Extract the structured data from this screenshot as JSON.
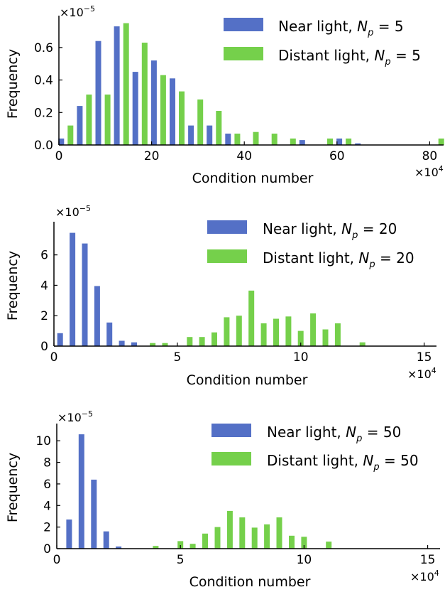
{
  "colors": {
    "near": "#5470c6",
    "distant": "#75d04b",
    "axis": "#000000"
  },
  "common": {
    "xlabel": "Condition number",
    "ylabel": "Frequency",
    "x_multiplier": "×10",
    "x_exp": "4",
    "y_multiplier": "×10",
    "y_exp": "−5"
  },
  "chart_data": [
    {
      "type": "bar",
      "xlim": [
        0,
        83
      ],
      "ylim": [
        0,
        0.77
      ],
      "xticks": [
        0,
        20,
        40,
        60,
        80
      ],
      "yticks": [
        0,
        0.2,
        0.4,
        0.6
      ],
      "ytick_labels": [
        "0.0",
        "0.2",
        "0.4",
        "0.6"
      ],
      "legend_position": "top-right",
      "series": [
        {
          "name": "Near light, ",
          "np": "5",
          "x": [
            0.5,
            4.5,
            8.5,
            12.5,
            16.5,
            20.5,
            24.5,
            28.5,
            32.5,
            36.5,
            52.5,
            60.5,
            64.5
          ],
          "values": [
            0.04,
            0.24,
            0.64,
            0.73,
            0.45,
            0.52,
            0.41,
            0.12,
            0.12,
            0.07,
            0.03,
            0.04,
            0.01
          ]
        },
        {
          "name": "Distant light, ",
          "np": "5",
          "x": [
            2.5,
            6.5,
            10.5,
            14.5,
            18.5,
            22.5,
            26.5,
            30.5,
            34.5,
            38.5,
            42.5,
            46.5,
            50.5,
            58.5,
            62.5,
            82.5
          ],
          "values": [
            0.12,
            0.31,
            0.31,
            0.75,
            0.63,
            0.43,
            0.33,
            0.28,
            0.21,
            0.07,
            0.08,
            0.07,
            0.04,
            0.04,
            0.04,
            0.04
          ]
        }
      ]
    },
    {
      "type": "bar",
      "xlim": [
        0,
        15.5
      ],
      "ylim": [
        0,
        7.9
      ],
      "xticks": [
        0,
        5,
        10,
        15
      ],
      "yticks": [
        0,
        2,
        4,
        6
      ],
      "ytick_labels": [
        "0",
        "2",
        "4",
        "6"
      ],
      "legend_position": "top-right",
      "series": [
        {
          "name": "Near light, ",
          "np": "20",
          "x": [
            0.25,
            0.75,
            1.25,
            1.75,
            2.25,
            2.75,
            3.25
          ],
          "values": [
            0.85,
            7.45,
            6.75,
            3.95,
            1.55,
            0.35,
            0.25
          ]
        },
        {
          "name": "Distant light, ",
          "np": "20",
          "x": [
            0.5,
            1.0,
            1.5,
            2.0,
            2.5,
            3.0,
            3.5,
            4.0,
            4.5,
            5.0,
            5.5,
            6.0,
            6.5,
            7.0,
            7.5,
            8.0,
            8.5,
            9.0,
            9.5,
            10.0,
            10.5,
            11.0,
            11.5,
            12.0,
            12.5
          ],
          "values": [
            0,
            0,
            0,
            0,
            0,
            0,
            0,
            0.2,
            0.2,
            0,
            0.6,
            0.6,
            0.9,
            1.9,
            2.0,
            3.65,
            1.5,
            1.8,
            1.95,
            1.0,
            2.15,
            1.1,
            1.5,
            0,
            0.25
          ]
        }
      ]
    },
    {
      "type": "bar",
      "xlim": [
        0,
        15.5
      ],
      "ylim": [
        0,
        11.2
      ],
      "xticks": [
        0,
        5,
        10,
        15
      ],
      "yticks": [
        0,
        2,
        4,
        6,
        8,
        10
      ],
      "ytick_labels": [
        "0",
        "2",
        "4",
        "6",
        "8",
        "10"
      ],
      "legend_position": "top-right",
      "series": [
        {
          "name": "Near light, ",
          "np": "50",
          "x": [
            0.5,
            1.0,
            1.5,
            2.0,
            2.5
          ],
          "values": [
            2.7,
            10.6,
            6.4,
            1.6,
            0.2
          ]
        },
        {
          "name": "Distant light, ",
          "np": "50",
          "x": [
            4.0,
            5.0,
            5.5,
            6.0,
            6.5,
            7.0,
            7.5,
            8.0,
            8.5,
            9.0,
            9.5,
            10.0,
            11.0
          ],
          "values": [
            0.25,
            0.7,
            0.45,
            1.4,
            2.0,
            3.5,
            2.9,
            1.95,
            2.25,
            2.9,
            1.2,
            1.1,
            0.65
          ]
        }
      ]
    }
  ]
}
